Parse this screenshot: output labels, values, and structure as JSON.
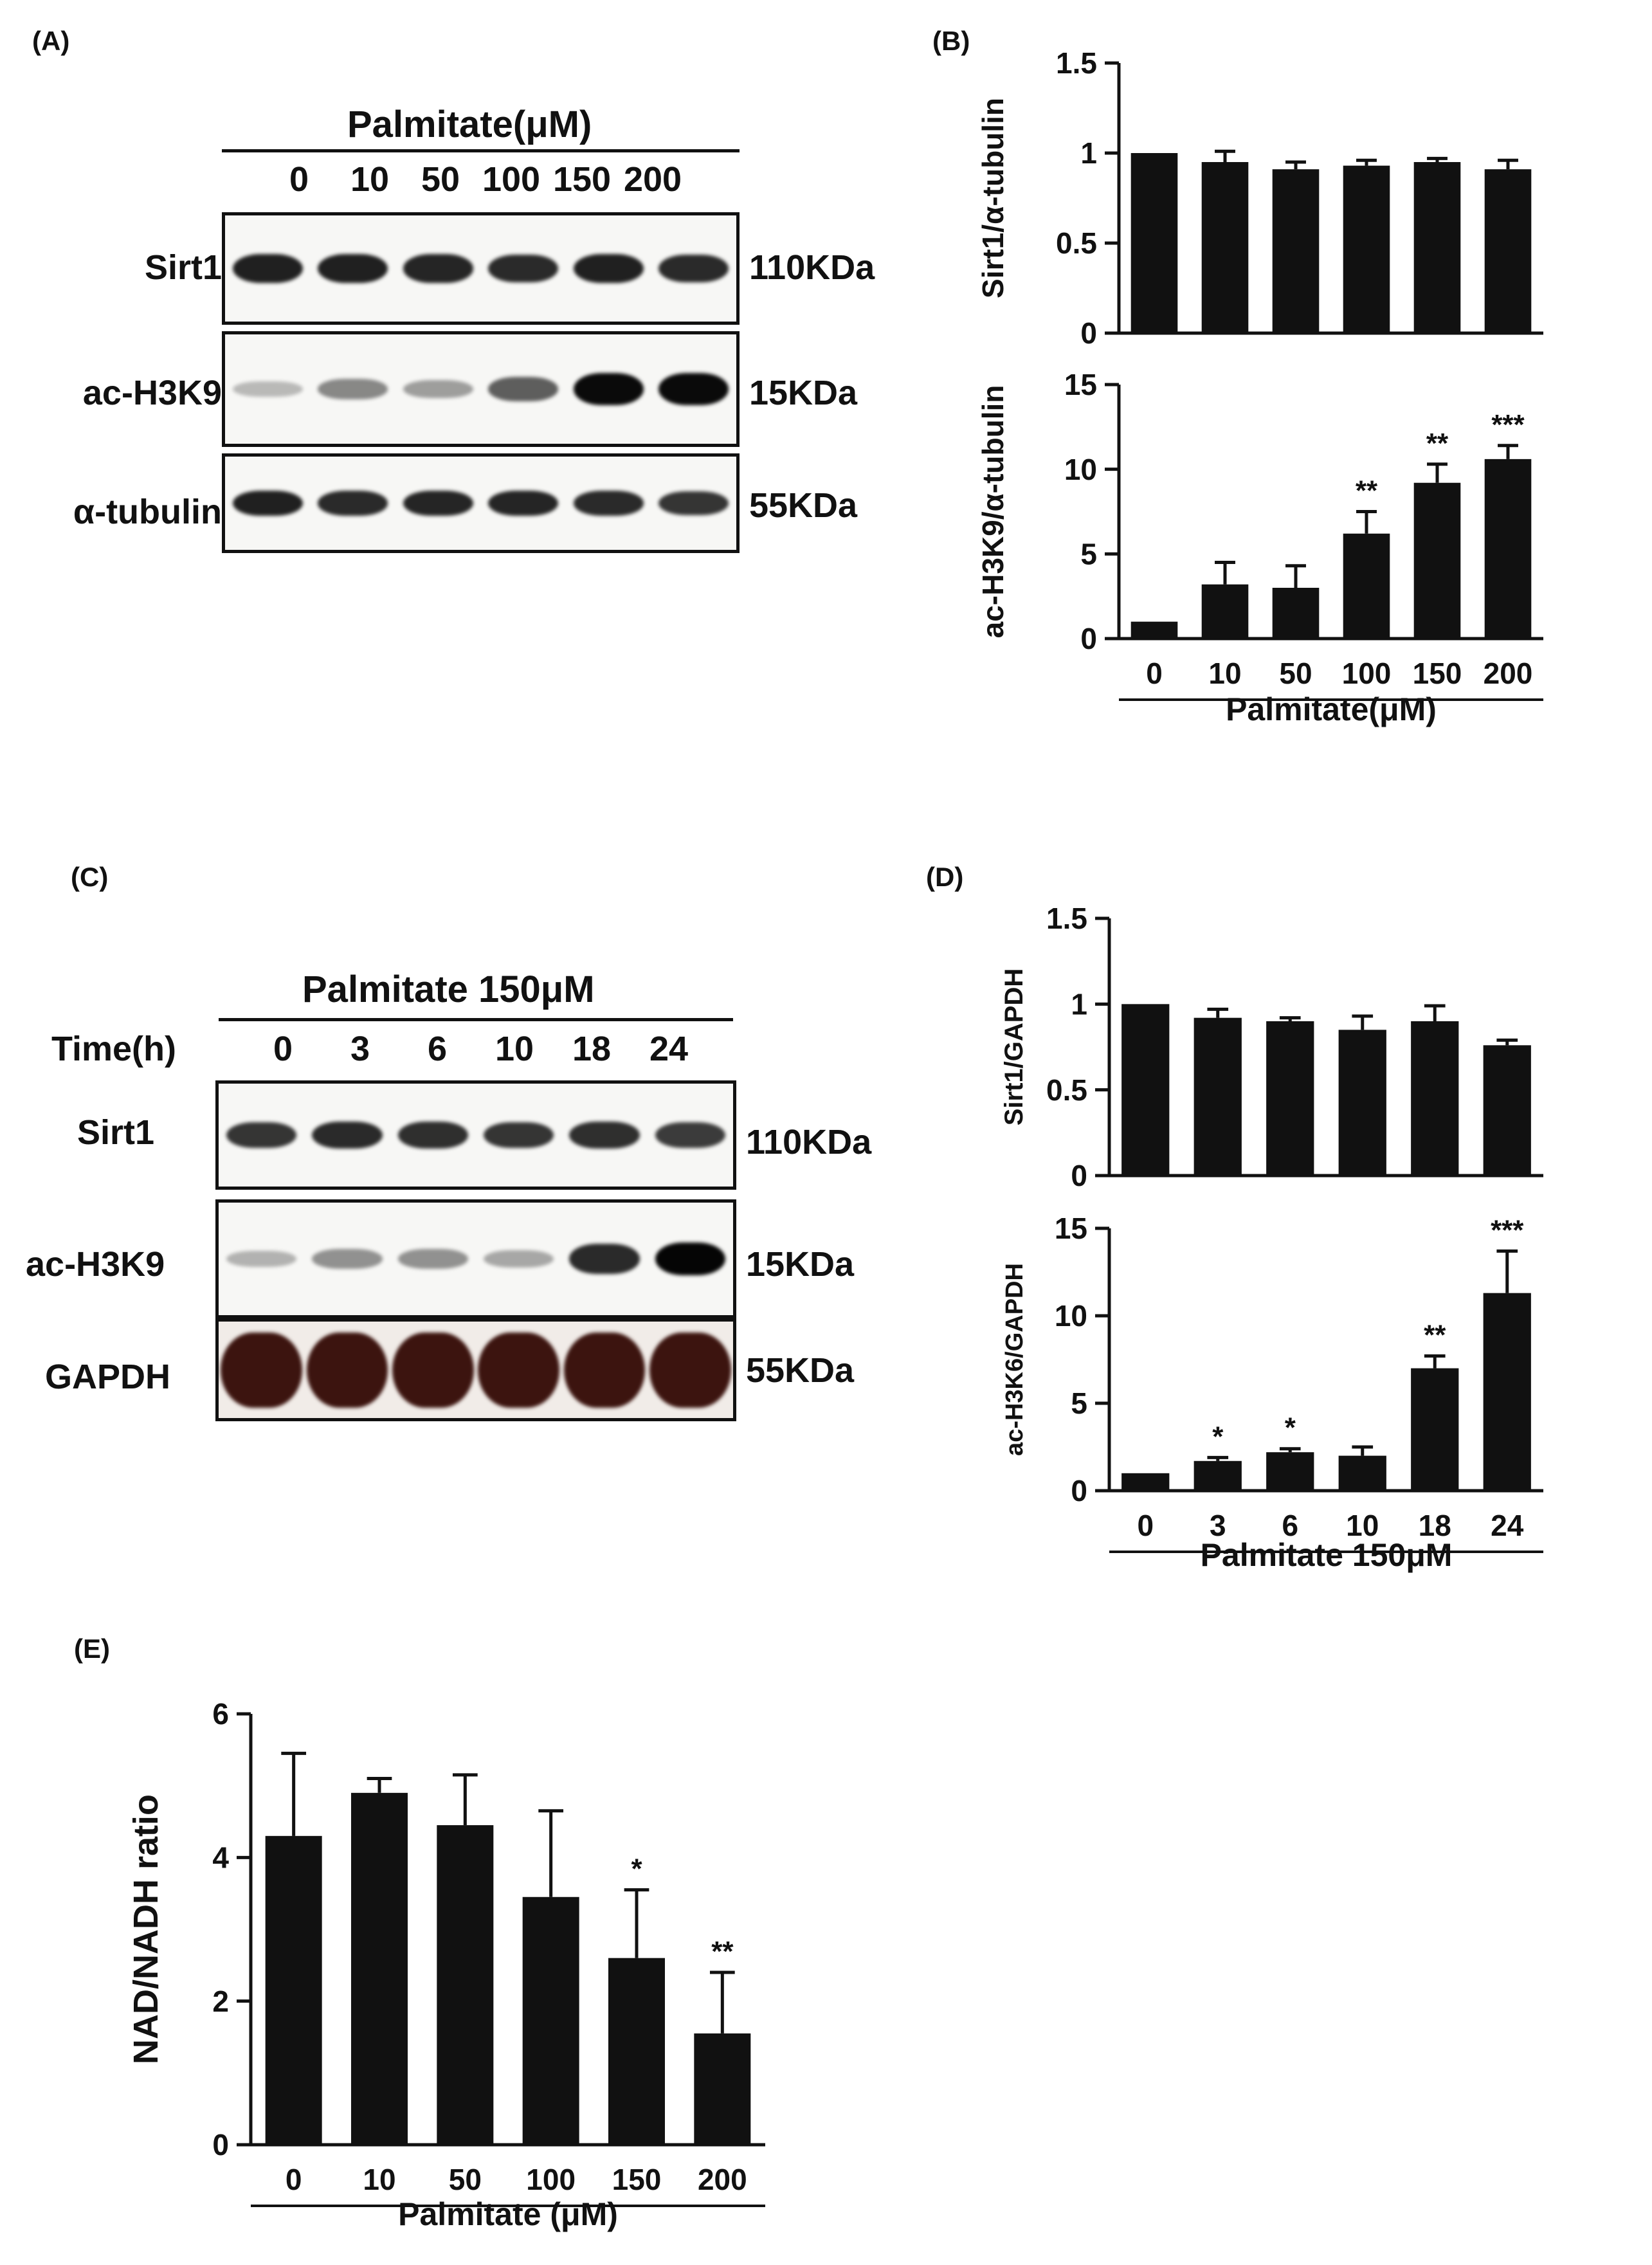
{
  "panels": {
    "A": {
      "label": "(A)",
      "header": "Palmitate(μM)",
      "lanes": [
        "0",
        "10",
        "50",
        "100",
        "150",
        "200"
      ],
      "rows": [
        {
          "name": "Sirt1",
          "kda": "110KDa",
          "intensity": [
            0.85,
            0.85,
            0.82,
            0.8,
            0.85,
            0.8
          ]
        },
        {
          "name": "ac-H3K9",
          "kda": "15KDa",
          "intensity": [
            0.12,
            0.35,
            0.25,
            0.55,
            0.95,
            0.95
          ]
        },
        {
          "name": "α-tubulin",
          "kda": "55KDa",
          "intensity": [
            0.85,
            0.8,
            0.82,
            0.82,
            0.8,
            0.75
          ]
        }
      ]
    },
    "C": {
      "label": "(C)",
      "header": "Palmitate 150μM",
      "lane_title": "Time(h)",
      "lanes": [
        "0",
        "3",
        "6",
        "10",
        "18",
        "24"
      ],
      "rows": [
        {
          "name": "Sirt1",
          "kda": "110KDa",
          "intensity": [
            0.75,
            0.8,
            0.78,
            0.75,
            0.78,
            0.72
          ]
        },
        {
          "name": "ac-H3K9",
          "kda": "15KDa",
          "intensity": [
            0.15,
            0.3,
            0.3,
            0.2,
            0.8,
            0.98
          ]
        },
        {
          "name": "GAPDH",
          "kda": "55KDa",
          "intensity": [
            1.0,
            1.0,
            1.0,
            1.0,
            1.0,
            1.0
          ]
        }
      ]
    },
    "B_label": "(B)",
    "D_label": "(D)",
    "E_label": "(E)"
  },
  "chart_data": [
    {
      "id": "B-top",
      "type": "bar",
      "categories": [
        "0",
        "10",
        "50",
        "100",
        "150",
        "200"
      ],
      "values": [
        1.0,
        0.95,
        0.91,
        0.93,
        0.95,
        0.91
      ],
      "errors": [
        0.0,
        0.06,
        0.04,
        0.03,
        0.02,
        0.05
      ],
      "sig": [
        "",
        "",
        "",
        "",
        "",
        ""
      ],
      "ylabel": "Sirt1/α-tubulin",
      "ylim": [
        0,
        1.5
      ],
      "yticks": [
        0,
        0.5,
        1,
        1.5
      ],
      "ytick_labels": [
        "0",
        "0.5",
        "1",
        "1.5"
      ],
      "xlabel": ""
    },
    {
      "id": "B-bottom",
      "type": "bar",
      "categories": [
        "0",
        "10",
        "50",
        "100",
        "150",
        "200"
      ],
      "values": [
        1.0,
        3.2,
        3.0,
        6.2,
        9.2,
        10.6
      ],
      "errors": [
        0.0,
        1.3,
        1.3,
        1.3,
        1.1,
        0.8
      ],
      "sig": [
        "",
        "",
        "",
        "**",
        "**",
        "***"
      ],
      "ylabel": "ac-H3K9/α-tubulin",
      "ylim": [
        0,
        15
      ],
      "yticks": [
        0,
        5,
        10,
        15
      ],
      "ytick_labels": [
        "0",
        "5",
        "10",
        "15"
      ],
      "xlabel": "Palmitate(μM)"
    },
    {
      "id": "D-top",
      "type": "bar",
      "categories": [
        "0",
        "3",
        "6",
        "10",
        "18",
        "24"
      ],
      "values": [
        1.0,
        0.92,
        0.9,
        0.85,
        0.9,
        0.76
      ],
      "errors": [
        0.0,
        0.05,
        0.02,
        0.08,
        0.09,
        0.03
      ],
      "sig": [
        "",
        "",
        "",
        "",
        "",
        ""
      ],
      "ylabel": "Sirt1/GAPDH",
      "ylim": [
        0,
        1.5
      ],
      "yticks": [
        0,
        0.5,
        1,
        1.5
      ],
      "ytick_labels": [
        "0",
        "0.5",
        "1",
        "1.5"
      ],
      "xlabel": ""
    },
    {
      "id": "D-bottom",
      "type": "bar",
      "categories": [
        "0",
        "3",
        "6",
        "10",
        "18",
        "24"
      ],
      "values": [
        1.0,
        1.7,
        2.2,
        2.0,
        7.0,
        11.3
      ],
      "errors": [
        0.0,
        0.2,
        0.2,
        0.5,
        0.7,
        2.4
      ],
      "sig": [
        "",
        "*",
        "*",
        "",
        "**",
        "***"
      ],
      "ylabel": "ac-H3K6/GAPDH",
      "ylim": [
        0,
        15
      ],
      "yticks": [
        0,
        5,
        10,
        15
      ],
      "ytick_labels": [
        "0",
        "5",
        "10",
        "15"
      ],
      "xlabel": "Palmitate 150μM"
    },
    {
      "id": "E",
      "type": "bar",
      "categories": [
        "0",
        "10",
        "50",
        "100",
        "150",
        "200"
      ],
      "values": [
        4.3,
        4.9,
        4.45,
        3.45,
        2.6,
        1.55
      ],
      "errors": [
        1.15,
        0.2,
        0.7,
        1.2,
        0.95,
        0.85
      ],
      "sig": [
        "",
        "",
        "",
        "",
        "*",
        "**"
      ],
      "ylabel": "NAD/NADH ratio",
      "ylim": [
        0,
        6
      ],
      "yticks": [
        0,
        2,
        4,
        6
      ],
      "ytick_labels": [
        "0",
        "2",
        "4",
        "6"
      ],
      "xlabel": "Palmitate (μM)"
    }
  ]
}
